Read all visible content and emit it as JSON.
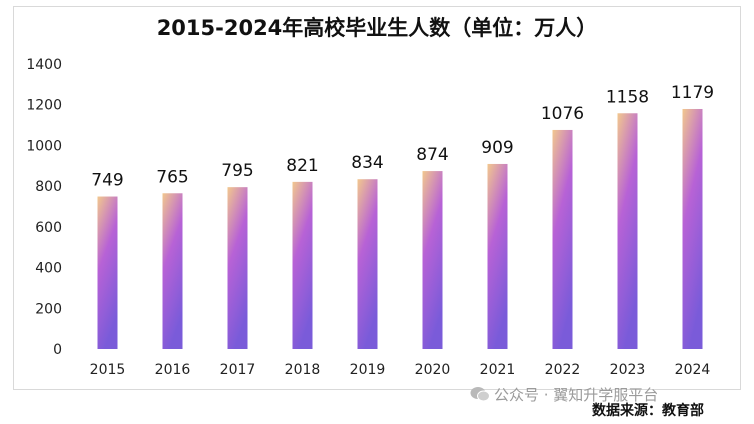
{
  "chart_data": {
    "type": "bar",
    "title": "2015-2024年高校毕业生人数（单位：万人）",
    "categories": [
      "2015",
      "2016",
      "2017",
      "2018",
      "2019",
      "2020",
      "2021",
      "2022",
      "2023",
      "2024"
    ],
    "values": [
      749,
      765,
      795,
      821,
      834,
      874,
      909,
      1076,
      1158,
      1179
    ],
    "ylim": [
      0,
      1400
    ],
    "yticks": [
      0,
      200,
      400,
      600,
      800,
      1000,
      1200,
      1400
    ],
    "grid": false,
    "legend": "none",
    "bar_gradient": [
      "#f2c88e",
      "#b762d6",
      "#7a5bd9"
    ]
  },
  "watermark": {
    "text": "公众号 · 翼知升学服平台",
    "icon": "wechat-icon"
  },
  "source": "数据来源：教育部"
}
